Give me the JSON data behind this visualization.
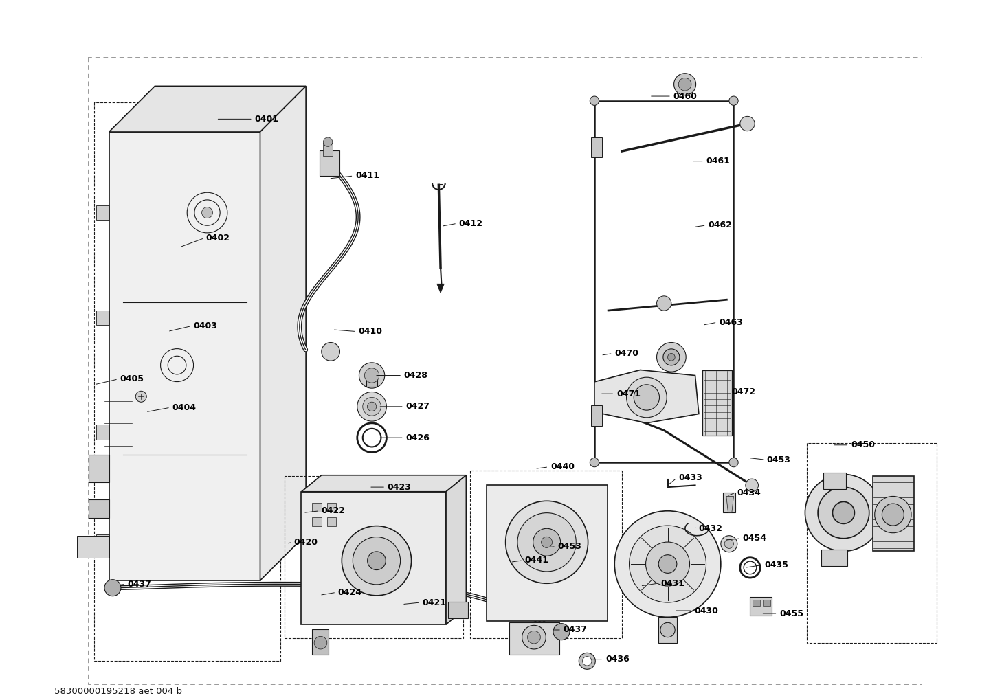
{
  "footer": "58300000195218 aet 004 b",
  "bg_color": "#ffffff",
  "line_color": "#1a1a1a",
  "label_color": "#000000",
  "label_fontsize": 9
}
